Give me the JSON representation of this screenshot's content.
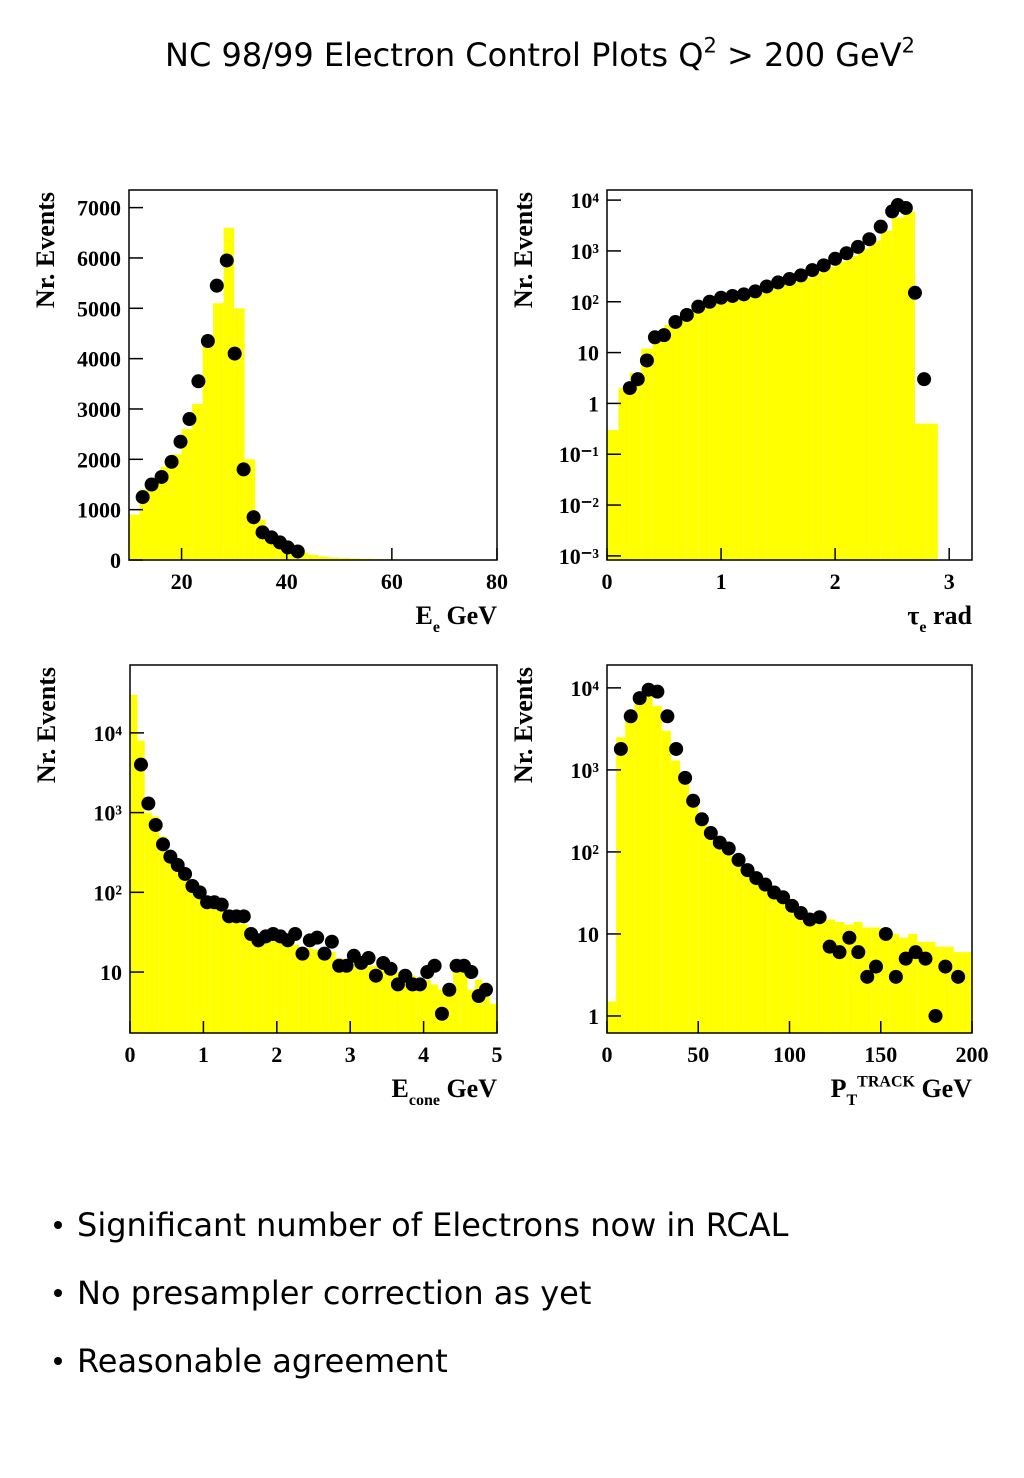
{
  "title": [
    {
      "text": "NC 98/99 Electron Control Plots Q"
    },
    {
      "text": "2",
      "style": "sup"
    },
    {
      "text": " > 200 GeV"
    },
    {
      "text": "2",
      "style": "sup"
    }
  ],
  "bullets": [
    "Significant number of Electrons now in RCAL",
    "No presampler correction as yet",
    "Reasonable agreement"
  ],
  "chart_data": [
    {
      "type": "histogram",
      "ylabel": "Nr. Events",
      "xlabel": [
        {
          "text": "E"
        },
        {
          "text": "e",
          "style": "sub"
        },
        {
          "text": " GeV"
        }
      ],
      "log_y": false,
      "xlim": [
        10,
        80
      ],
      "ylim": [
        0,
        7350
      ],
      "xticks": [
        20,
        40,
        60,
        80
      ],
      "yticks": [
        0,
        1000,
        2000,
        3000,
        4000,
        5000,
        6000,
        7000
      ],
      "color": "#ffff00",
      "bins": [
        10,
        12,
        14,
        16,
        18,
        20,
        22,
        24,
        26,
        28,
        30,
        32,
        34,
        36,
        38,
        40,
        42,
        44,
        46,
        48,
        50,
        52,
        54,
        56,
        58,
        60,
        62,
        64,
        66,
        68,
        70,
        72,
        74,
        76,
        78,
        80
      ],
      "counts": [
        900,
        1400,
        1600,
        1850,
        2100,
        2600,
        3100,
        4300,
        5100,
        6600,
        5000,
        2000,
        800,
        450,
        300,
        200,
        150,
        100,
        70,
        50,
        40,
        30,
        25,
        20,
        15,
        12,
        10,
        8,
        6,
        5,
        4,
        3,
        2,
        2,
        2
      ],
      "points": {
        "color": "#000000",
        "x": [
          12.6,
          14.3,
          16.2,
          18.1,
          19.8,
          21.5,
          23.2,
          25,
          26.7,
          28.6,
          30.1,
          31.8,
          33.7,
          35.4,
          37.1,
          38.7,
          40.2,
          42.1
        ],
        "values": [
          1250,
          1500,
          1650,
          1950,
          2350,
          2800,
          3550,
          4350,
          5450,
          5950,
          4100,
          1800,
          850,
          550,
          450,
          350,
          250,
          170
        ]
      }
    },
    {
      "type": "histogram",
      "ylabel": "Nr. Events",
      "xlabel": [
        {
          "text": "τ"
        },
        {
          "text": "e",
          "style": "sub"
        },
        {
          "text": " rad"
        }
      ],
      "log_y": true,
      "xlim": [
        0,
        3.2
      ],
      "ylim": [
        0.00083,
        15800
      ],
      "xticks": [
        0,
        1,
        2,
        3
      ],
      "yticks": [
        {
          "value": 10000,
          "label": "10⁴"
        },
        {
          "value": 1000,
          "label": "10³"
        },
        {
          "value": 100,
          "label": "10²"
        },
        10,
        1,
        {
          "value": 0.1,
          "label": "10⁻¹"
        },
        {
          "value": 0.01,
          "label": "10⁻²"
        },
        {
          "value": 0.001,
          "label": "10⁻³"
        }
      ],
      "color": "#ffff00",
      "bins": [
        0,
        0.1,
        0.2,
        0.3,
        0.4,
        0.5,
        0.6,
        0.7,
        0.8,
        0.9,
        1.0,
        1.1,
        1.2,
        1.3,
        1.4,
        1.5,
        1.6,
        1.7,
        1.8,
        1.9,
        2.0,
        2.1,
        2.2,
        2.3,
        2.4,
        2.5,
        2.6,
        2.7,
        2.8,
        2.9
      ],
      "counts": [
        0.3,
        2,
        4,
        12,
        25,
        35,
        50,
        70,
        85,
        100,
        110,
        120,
        135,
        150,
        180,
        210,
        250,
        300,
        380,
        480,
        620,
        800,
        1100,
        1600,
        2500,
        4500,
        6000,
        0.4,
        0.4
      ],
      "points": {
        "color": "#000000",
        "x": [
          0.2,
          0.27,
          0.35,
          0.42,
          0.5,
          0.6,
          0.7,
          0.8,
          0.9,
          1.0,
          1.1,
          1.2,
          1.3,
          1.4,
          1.5,
          1.6,
          1.7,
          1.8,
          1.9,
          2.0,
          2.1,
          2.2,
          2.3,
          2.4,
          2.5,
          2.55,
          2.62,
          2.7,
          2.78
        ],
        "values": [
          2,
          3,
          7,
          20,
          22,
          40,
          55,
          80,
          100,
          120,
          130,
          140,
          160,
          200,
          240,
          280,
          330,
          420,
          520,
          700,
          900,
          1200,
          1700,
          3000,
          6000,
          8000,
          7000,
          150,
          3
        ]
      }
    },
    {
      "type": "histogram",
      "ylabel": "Nr. Events",
      "xlabel": [
        {
          "text": "E"
        },
        {
          "text": "cone",
          "style": "sub"
        },
        {
          "text": " GeV"
        }
      ],
      "log_y": true,
      "xlim": [
        0,
        5
      ],
      "ylim": [
        1.72,
        71000
      ],
      "xticks": [
        0,
        1,
        2,
        3,
        4,
        5
      ],
      "yticks": [
        {
          "value": 10000,
          "label": "10⁴"
        },
        {
          "value": 1000,
          "label": "10³"
        },
        {
          "value": 100,
          "label": "10²"
        },
        10
      ],
      "color": "#ffff00",
      "bins": [
        0,
        0.1,
        0.2,
        0.3,
        0.4,
        0.5,
        0.6,
        0.7,
        0.8,
        0.9,
        1.0,
        1.1,
        1.2,
        1.3,
        1.4,
        1.5,
        1.6,
        1.7,
        1.8,
        1.9,
        2.0,
        2.1,
        2.2,
        2.3,
        2.4,
        2.5,
        2.6,
        2.7,
        2.8,
        2.9,
        3.0,
        3.1,
        3.2,
        3.3,
        3.4,
        3.5,
        3.6,
        3.7,
        3.8,
        3.9,
        4.0,
        4.1,
        4.2,
        4.3,
        4.4,
        4.5,
        4.6,
        4.7,
        4.8,
        4.9,
        5.0
      ],
      "counts": [
        30000,
        8000,
        1000,
        900,
        500,
        300,
        220,
        170,
        120,
        100,
        80,
        70,
        60,
        50,
        45,
        40,
        35,
        28,
        26,
        25,
        25,
        22,
        22,
        20,
        20,
        19,
        18,
        18,
        15,
        14,
        14,
        13,
        12,
        12,
        11,
        10,
        10,
        10,
        9,
        8,
        8,
        7,
        6,
        5,
        10,
        10,
        6,
        8,
        6,
        4
      ],
      "points": {
        "color": "#000000",
        "x": [
          0.15,
          0.25,
          0.35,
          0.45,
          0.55,
          0.65,
          0.75,
          0.85,
          0.95,
          1.05,
          1.15,
          1.25,
          1.35,
          1.45,
          1.55,
          1.65,
          1.75,
          1.85,
          1.95,
          2.05,
          2.15,
          2.25,
          2.35,
          2.45,
          2.55,
          2.65,
          2.75,
          2.85,
          2.95,
          3.05,
          3.15,
          3.25,
          3.35,
          3.45,
          3.55,
          3.65,
          3.75,
          3.85,
          3.95,
          4.05,
          4.15,
          4.25,
          4.35,
          4.45,
          4.55,
          4.65,
          4.75,
          4.85
        ],
        "values": [
          4000,
          1300,
          700,
          400,
          280,
          220,
          170,
          120,
          100,
          75,
          75,
          70,
          50,
          50,
          50,
          30,
          25,
          28,
          30,
          28,
          25,
          30,
          17,
          25,
          27,
          17,
          24,
          12,
          12,
          16,
          13,
          15,
          9,
          13,
          11,
          7,
          9,
          7,
          7,
          10,
          12,
          3,
          6,
          12,
          12,
          10,
          5,
          6
        ]
      }
    },
    {
      "type": "histogram",
      "ylabel": "Nr. Events",
      "xlabel": [
        {
          "text": "P"
        },
        {
          "text": "T",
          "style": "sub"
        },
        {
          "text": "TRACK",
          "style": "sup"
        },
        {
          "text": " GeV"
        }
      ],
      "log_y": true,
      "xlim": [
        0,
        200
      ],
      "ylim": [
        0.62,
        19000
      ],
      "xticks": [
        0,
        50,
        100,
        150,
        200
      ],
      "yticks": [
        {
          "value": 10000,
          "label": "10⁴"
        },
        {
          "value": 1000,
          "label": "10³"
        },
        {
          "value": 100,
          "label": "10²"
        },
        10,
        1
      ],
      "color": "#ffff00",
      "bins": [
        0,
        5,
        10,
        15,
        20,
        25,
        30,
        35,
        40,
        45,
        50,
        55,
        60,
        65,
        70,
        75,
        80,
        85,
        90,
        95,
        100,
        105,
        110,
        115,
        120,
        125,
        130,
        135,
        140,
        145,
        150,
        155,
        160,
        165,
        170,
        175,
        180,
        185,
        190,
        195,
        200
      ],
      "counts": [
        1.5,
        2500,
        5000,
        8000,
        9000,
        6000,
        3000,
        1300,
        700,
        400,
        250,
        180,
        120,
        90,
        70,
        55,
        45,
        38,
        32,
        28,
        24,
        20,
        18,
        16,
        15,
        14,
        13,
        14,
        12,
        12,
        10,
        10,
        9,
        10,
        8,
        8,
        7,
        7,
        6,
        6
      ],
      "points": {
        "color": "#000000",
        "x": [
          7.6,
          13,
          17.9,
          22.8,
          27.6,
          33.1,
          37.9,
          42.8,
          47.2,
          52,
          56.9,
          61.8,
          66.7,
          72.1,
          77,
          81.8,
          86.7,
          91.6,
          96.5,
          101.4,
          106.2,
          111.1,
          116.5,
          122,
          127.4,
          132.8,
          137.7,
          142.6,
          147.4,
          152.8,
          158.3,
          163.7,
          169.1,
          174.5,
          180,
          185.4,
          192.4
        ],
        "values": [
          1800,
          4500,
          7500,
          9500,
          9000,
          4500,
          1800,
          800,
          420,
          250,
          170,
          130,
          110,
          80,
          60,
          48,
          40,
          32,
          28,
          22,
          18,
          15,
          16,
          7,
          6,
          9,
          6,
          3,
          4,
          10,
          3,
          5,
          6,
          5,
          1,
          4,
          3
        ]
      }
    }
  ]
}
